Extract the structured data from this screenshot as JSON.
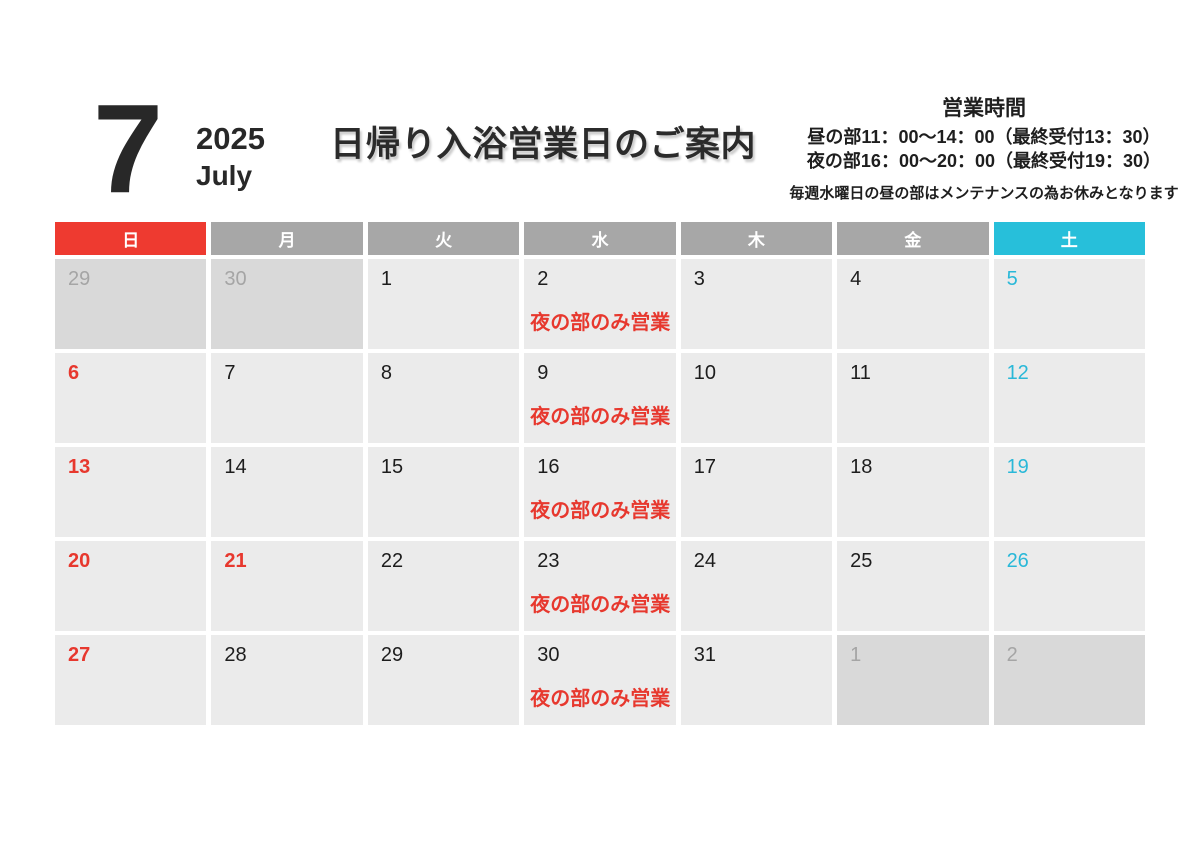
{
  "header": {
    "month_number": "7",
    "year": "2025",
    "month_name": "July",
    "title": "日帰り入浴営業日のご案内",
    "hours_heading": "営業時間",
    "hours_line1": "昼の部11：00～14：00（最終受付13：30）",
    "hours_line2": "夜の部16：00～20：00（最終受付19：30）",
    "hours_note": "毎週水曜日の昼の部はメンテナンスの為お休みとなります"
  },
  "colors": {
    "sunday_header_red": "#ee3a30",
    "saturday_header_cyan": "#27bfda",
    "weekday_header_gray": "#a7a7a7",
    "red_text": "#e7382e",
    "cyan_text": "#29b8d8",
    "current_month_cell_bg": "#ebebeb",
    "other_month_cell_bg": "#d9d9d9",
    "other_month_number_gray": "#a5a5a5"
  },
  "weekday_headers": [
    {
      "label": "日",
      "type": "sun"
    },
    {
      "label": "月",
      "type": "weekday"
    },
    {
      "label": "火",
      "type": "weekday"
    },
    {
      "label": "水",
      "type": "weekday"
    },
    {
      "label": "木",
      "type": "weekday"
    },
    {
      "label": "金",
      "type": "weekday"
    },
    {
      "label": "土",
      "type": "sat"
    }
  ],
  "calendar": {
    "night_only_note": "夜の部のみ営業",
    "days": [
      {
        "num": "29",
        "type": "other"
      },
      {
        "num": "30",
        "type": "other"
      },
      {
        "num": "1",
        "type": "weekday"
      },
      {
        "num": "2",
        "type": "weekday",
        "note": "夜の部のみ営業"
      },
      {
        "num": "3",
        "type": "weekday"
      },
      {
        "num": "4",
        "type": "weekday"
      },
      {
        "num": "5",
        "type": "sat"
      },
      {
        "num": "6",
        "type": "sun"
      },
      {
        "num": "7",
        "type": "weekday"
      },
      {
        "num": "8",
        "type": "weekday"
      },
      {
        "num": "9",
        "type": "weekday",
        "note": "夜の部のみ営業"
      },
      {
        "num": "10",
        "type": "weekday"
      },
      {
        "num": "11",
        "type": "weekday"
      },
      {
        "num": "12",
        "type": "sat"
      },
      {
        "num": "13",
        "type": "sun"
      },
      {
        "num": "14",
        "type": "weekday"
      },
      {
        "num": "15",
        "type": "weekday"
      },
      {
        "num": "16",
        "type": "weekday",
        "note": "夜の部のみ営業"
      },
      {
        "num": "17",
        "type": "weekday"
      },
      {
        "num": "18",
        "type": "weekday"
      },
      {
        "num": "19",
        "type": "sat"
      },
      {
        "num": "20",
        "type": "sun"
      },
      {
        "num": "21",
        "type": "holiday"
      },
      {
        "num": "22",
        "type": "weekday"
      },
      {
        "num": "23",
        "type": "weekday",
        "note": "夜の部のみ営業"
      },
      {
        "num": "24",
        "type": "weekday"
      },
      {
        "num": "25",
        "type": "weekday"
      },
      {
        "num": "26",
        "type": "sat"
      },
      {
        "num": "27",
        "type": "sun"
      },
      {
        "num": "28",
        "type": "weekday"
      },
      {
        "num": "29",
        "type": "weekday"
      },
      {
        "num": "30",
        "type": "weekday",
        "note": "夜の部のみ営業"
      },
      {
        "num": "31",
        "type": "weekday"
      },
      {
        "num": "1",
        "type": "other"
      },
      {
        "num": "2",
        "type": "other"
      }
    ]
  }
}
